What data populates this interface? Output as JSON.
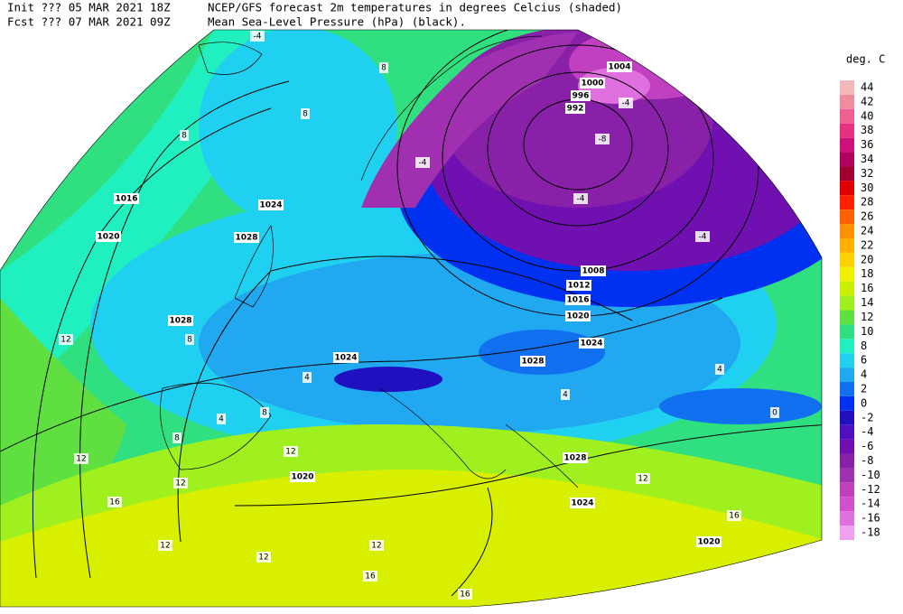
{
  "header": {
    "init": "Init  ??? 05 MAR 2021 18Z",
    "fcst": "Fcst ??? 07 MAR 2021 09Z",
    "title_line1": "NCEP/GFS forecast 2m temperatures in degrees Celcius (shaded)",
    "title_line2": "Mean Sea-Level Pressure (hPa) (black)."
  },
  "legend": {
    "unit": "deg. C",
    "levels": [
      44,
      42,
      40,
      38,
      36,
      34,
      32,
      30,
      28,
      26,
      24,
      22,
      20,
      18,
      16,
      14,
      12,
      10,
      8,
      6,
      4,
      2,
      0,
      -2,
      -4,
      -6,
      -8,
      -10,
      -12,
      -14,
      -16,
      -18
    ],
    "colors": [
      "#f5b8b8",
      "#f08ca0",
      "#f06090",
      "#e83080",
      "#d0107a",
      "#b00060",
      "#a00030",
      "#e00000",
      "#ff2000",
      "#ff6000",
      "#ff9000",
      "#ffb000",
      "#ffd000",
      "#f0f000",
      "#c8f000",
      "#a0f020",
      "#60e040",
      "#30e080",
      "#20f0c0",
      "#20d0f0",
      "#20a8f0",
      "#1070f0",
      "#0030f0",
      "#2010c0",
      "#5010c0",
      "#7010b0",
      "#8820a8",
      "#a030b0",
      "#c040c0",
      "#d050d0",
      "#e070e0",
      "#f0a0f0"
    ]
  },
  "map": {
    "isobar_labels": [
      "1004",
      "1000",
      "996",
      "992",
      "1008",
      "1012",
      "1016",
      "1020",
      "1024",
      "1028",
      "1016",
      "1020",
      "1024",
      "1028",
      "1028",
      "1024",
      "1020",
      "1028",
      "1024",
      "1020"
    ],
    "temperature_labels": [
      "12",
      "8",
      "8",
      "12",
      "16",
      "12",
      "12",
      "16",
      "16",
      "12",
      "12",
      "8",
      "4",
      "8",
      "12",
      "4",
      "8",
      "-4",
      "-4",
      "-4",
      "-8",
      "-4",
      "4",
      "4",
      "12",
      "16",
      "0",
      "-4",
      "8"
    ]
  }
}
